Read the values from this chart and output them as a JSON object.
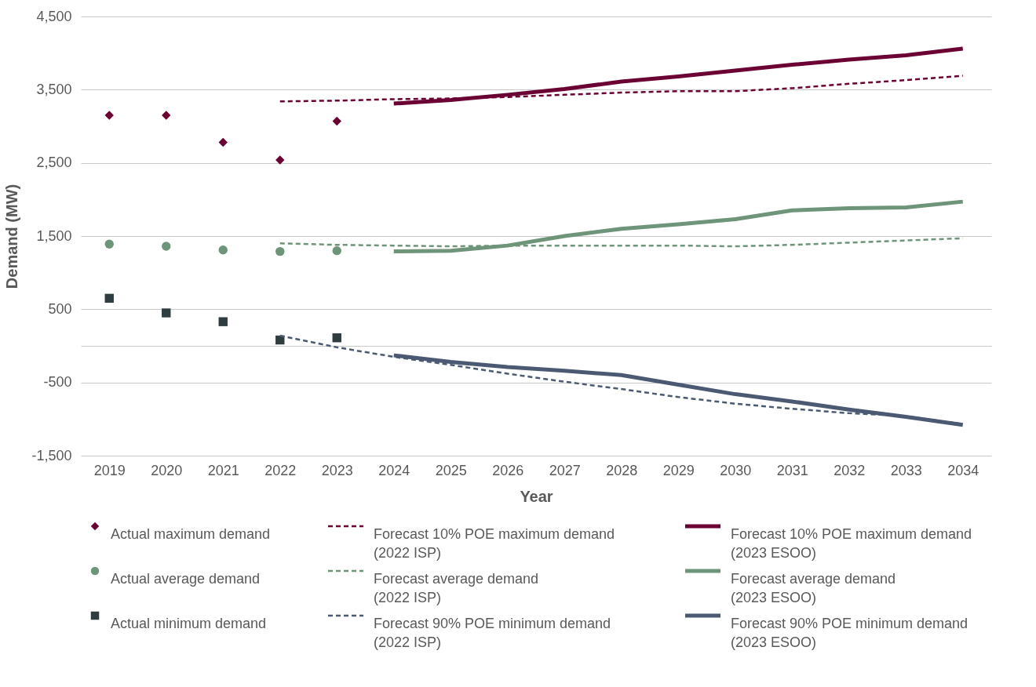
{
  "chart_data": {
    "type": "line",
    "xlabel": "Year",
    "ylabel": "Demand (MW)",
    "categories": [
      "2019",
      "2020",
      "2021",
      "2022",
      "2023",
      "2024",
      "2025",
      "2026",
      "2027",
      "2028",
      "2029",
      "2030",
      "2031",
      "2032",
      "2033",
      "2034"
    ],
    "ylim": [
      -1500,
      4500
    ],
    "yticks": [
      {
        "value": -1500,
        "label": "-1,500"
      },
      {
        "value": -500,
        "label": "-500"
      },
      {
        "value": 0,
        "label": null
      },
      {
        "value": 500,
        "label": "500"
      },
      {
        "value": 1500,
        "label": "1,500"
      },
      {
        "value": 2500,
        "label": "2,500"
      },
      {
        "value": 3500,
        "label": "3,500"
      },
      {
        "value": 4500,
        "label": "4,500"
      }
    ],
    "grid": "y",
    "legend": "bottom",
    "series": [
      {
        "name": "Actual maximum demand",
        "type": "scatter",
        "marker": "diamond",
        "color": "#6b0033",
        "values": [
          3150,
          3150,
          2780,
          2540,
          3070,
          null,
          null,
          null,
          null,
          null,
          null,
          null,
          null,
          null,
          null,
          null
        ]
      },
      {
        "name": "Actual average demand",
        "type": "scatter",
        "marker": "circle",
        "color": "#6e9479",
        "values": [
          1390,
          1360,
          1310,
          1290,
          1300,
          null,
          null,
          null,
          null,
          null,
          null,
          null,
          null,
          null,
          null,
          null
        ]
      },
      {
        "name": "Actual minimum demand",
        "type": "scatter",
        "marker": "square",
        "color": "#2f3d40",
        "values": [
          650,
          450,
          330,
          80,
          110,
          null,
          null,
          null,
          null,
          null,
          null,
          null,
          null,
          null,
          null,
          null
        ]
      },
      {
        "name": "Forecast 10% POE maximum demand (2022 ISP)",
        "line_style": "dashed",
        "color": "#6b0033",
        "values": [
          null,
          null,
          null,
          3340,
          3350,
          3370,
          3380,
          3400,
          3430,
          3460,
          3480,
          3480,
          3520,
          3580,
          3630,
          3690
        ]
      },
      {
        "name": "Forecast average demand (2022 ISP)",
        "line_style": "dashed",
        "color": "#6e9479",
        "values": [
          null,
          null,
          null,
          1400,
          1380,
          1370,
          1360,
          1370,
          1370,
          1370,
          1370,
          1360,
          1380,
          1410,
          1440,
          1470
        ]
      },
      {
        "name": "Forecast 90% POE minimum demand (2022 ISP)",
        "line_style": "dashed",
        "color": "#4a5a70",
        "values": [
          null,
          null,
          null,
          140,
          -20,
          -150,
          -260,
          -380,
          -490,
          -590,
          -700,
          -790,
          -860,
          -920,
          -960,
          -1070
        ]
      },
      {
        "name": "Forecast 10% POE maximum demand (2023 ESOO)",
        "line_style": "solid",
        "color": "#6b0033",
        "values": [
          null,
          null,
          null,
          null,
          null,
          3310,
          3360,
          3430,
          3510,
          3610,
          3680,
          3760,
          3840,
          3910,
          3970,
          4060
        ]
      },
      {
        "name": "Forecast average demand (2023 ESOO)",
        "line_style": "solid",
        "color": "#6e9479",
        "values": [
          null,
          null,
          null,
          null,
          null,
          1290,
          1300,
          1370,
          1500,
          1600,
          1660,
          1730,
          1850,
          1880,
          1890,
          1970
        ]
      },
      {
        "name": "Forecast 90% POE minimum demand (2023 ESOO)",
        "line_style": "solid",
        "color": "#4b5a72",
        "values": [
          null,
          null,
          null,
          null,
          null,
          -130,
          -220,
          -290,
          -340,
          -400,
          -530,
          -660,
          -760,
          -870,
          -970,
          -1080
        ]
      }
    ]
  }
}
